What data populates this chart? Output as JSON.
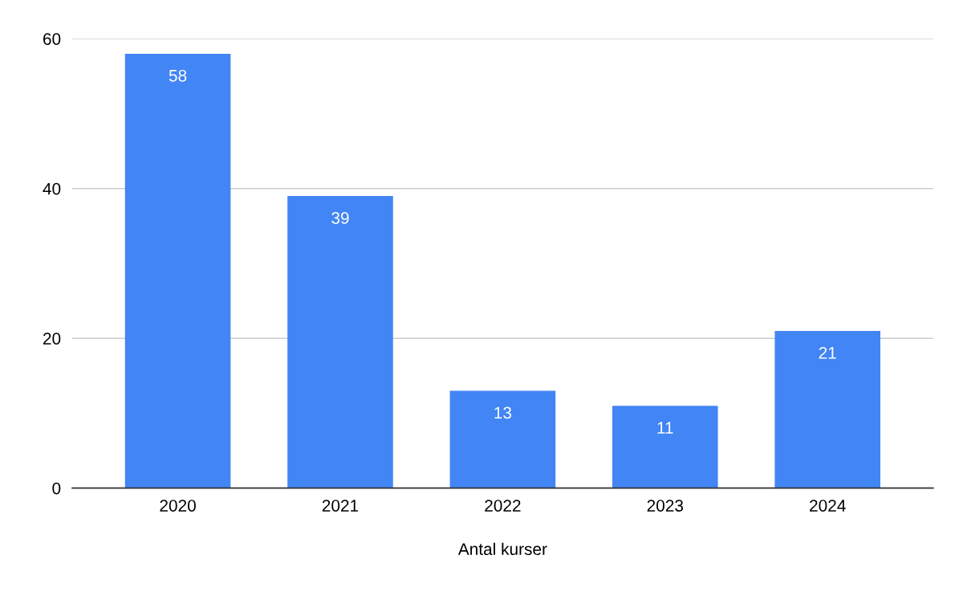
{
  "chart_data": {
    "type": "bar",
    "xlabel": "Antal kurser",
    "categories": [
      "2020",
      "2021",
      "2022",
      "2023",
      "2024"
    ],
    "values": [
      58,
      39,
      13,
      11,
      21
    ],
    "color": "#4285f4",
    "ylim": [
      0,
      60
    ],
    "yticks": [
      0,
      20,
      40,
      60
    ],
    "grid": "y",
    "data_labels": true
  }
}
